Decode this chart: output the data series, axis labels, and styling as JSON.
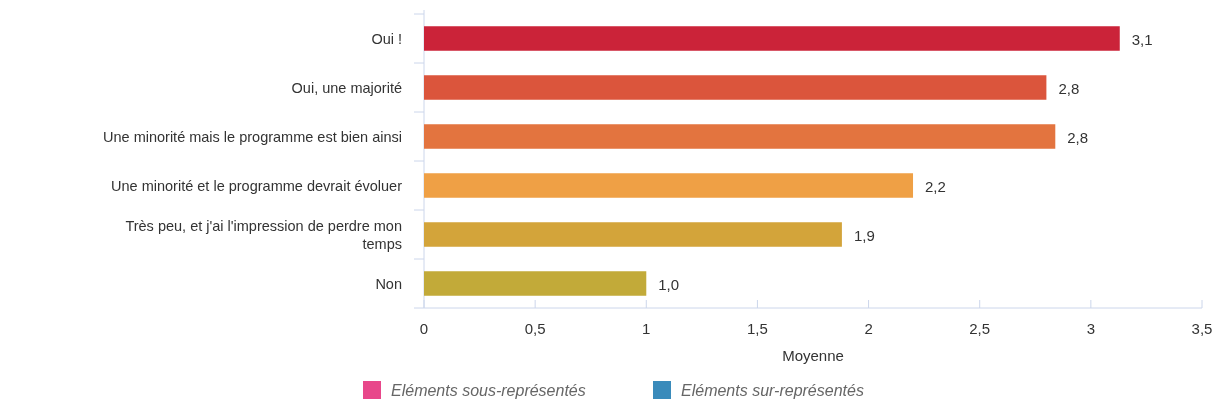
{
  "chart_data": {
    "type": "bar",
    "orientation": "horizontal",
    "xlabel": "Moyenne",
    "categories": [
      "Oui !",
      "Oui, une majorité",
      "Une minorité mais le programme est bien ainsi",
      "Une minorité et le programme devrait évoluer",
      "Très peu, et j'ai l'impression de perdre mon temps",
      "Non"
    ],
    "values": [
      3.13,
      2.8,
      2.84,
      2.2,
      1.88,
      1.0
    ],
    "colors": [
      "#cb2339",
      "#db553c",
      "#e3743f",
      "#efa045",
      "#d3a43a",
      "#c2aa39"
    ],
    "value_labels": [
      "3,1",
      "2,8",
      "2,8",
      "2,2",
      "1,9",
      "1,0"
    ],
    "xlim": [
      0,
      3.5
    ],
    "xticks": [
      0,
      {
        "value": 0.5,
        "label": "0,5"
      },
      1,
      {
        "value": 1.5,
        "label": "1,5"
      },
      2,
      {
        "value": 2.5,
        "label": "2,5"
      },
      3,
      {
        "value": 3.5,
        "label": "3,5"
      }
    ],
    "grid": false,
    "annotations": [
      "Eléments sous-représentés",
      "Eléments sur-représentés"
    ]
  }
}
